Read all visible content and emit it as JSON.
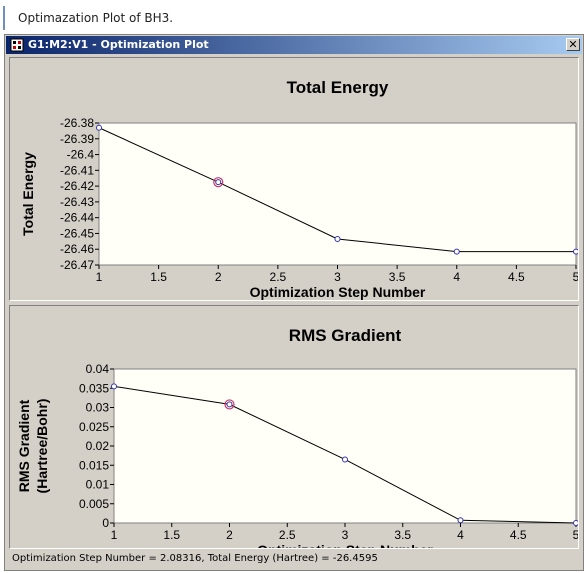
{
  "caption": {
    "text": "Optimazation Plot of BH3."
  },
  "window": {
    "title": "G1:M2:V1 - Optimization Plot",
    "close_label": "✕"
  },
  "status": {
    "text": "Optimization Step Number = 2.08316,  Total Energy (Hartree) = -26.4595"
  },
  "chart_data": [
    {
      "type": "line",
      "title": "Total Energy",
      "xlabel": "Optimization Step Number",
      "ylabel": [
        "Total Energy"
      ],
      "x": [
        1,
        2,
        3,
        4,
        5
      ],
      "series": [
        {
          "values": [
            -26.383,
            -26.4175,
            -26.4535,
            -26.4615,
            -26.4615
          ]
        }
      ],
      "highlight_index": 1,
      "xlim": [
        1,
        5
      ],
      "ylim": [
        -26.47,
        -26.38
      ],
      "xticks": [
        1,
        1.5,
        2,
        2.5,
        3,
        3.5,
        4,
        4.5,
        5
      ],
      "xtick_labels": [
        "1",
        "1.5",
        "2",
        "2.5",
        "3",
        "3.5",
        "4",
        "4.5",
        "5"
      ],
      "yticks": [
        -26.38,
        -26.39,
        -26.4,
        -26.41,
        -26.42,
        -26.43,
        -26.44,
        -26.45,
        -26.46,
        -26.47
      ],
      "ytick_labels": [
        "-26.38",
        "-26.39",
        "-26.4",
        "-26.41",
        "-26.42",
        "-26.43",
        "-26.44",
        "-26.45",
        "-26.46",
        "-26.47"
      ],
      "grid": false,
      "line_color": "#000000",
      "marker_color": "#3333aa",
      "highlight_color": "#cc3366"
    },
    {
      "type": "line",
      "title": "RMS Gradient",
      "xlabel": "Optimization Step Number",
      "ylabel": [
        "RMS Gradient",
        "(Hartree/Bohr)"
      ],
      "x": [
        1,
        2,
        3,
        4,
        5
      ],
      "series": [
        {
          "values": [
            0.0355,
            0.0308,
            0.0165,
            0.0007,
            0.0
          ]
        }
      ],
      "highlight_index": 1,
      "xlim": [
        1,
        5
      ],
      "ylim": [
        0,
        0.04
      ],
      "xticks": [
        1,
        1.5,
        2,
        2.5,
        3,
        3.5,
        4,
        4.5,
        5
      ],
      "xtick_labels": [
        "1",
        "1.5",
        "2",
        "2.5",
        "3",
        "3.5",
        "4",
        "4.5",
        "5"
      ],
      "yticks": [
        0,
        0.005,
        0.01,
        0.015,
        0.02,
        0.025,
        0.03,
        0.035,
        0.04
      ],
      "ytick_labels": [
        "0",
        "0.005",
        "0.01",
        "0.015",
        "0.02",
        "0.025",
        "0.03",
        "0.035",
        "0.04"
      ],
      "grid": false,
      "line_color": "#000000",
      "marker_color": "#3333aa",
      "highlight_color": "#cc3366"
    }
  ]
}
